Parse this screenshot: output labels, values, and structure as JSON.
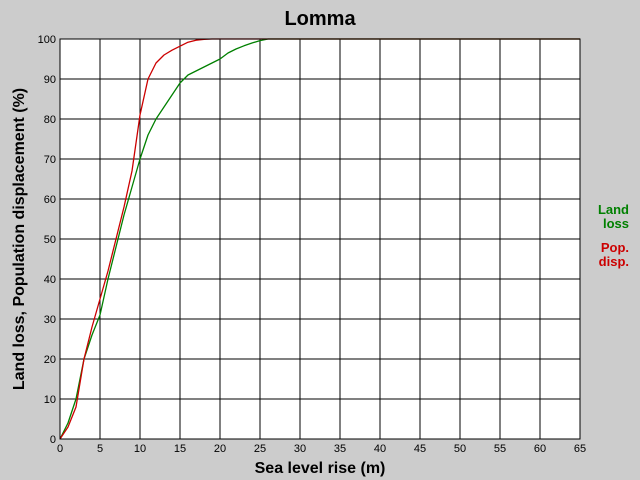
{
  "chart_data": {
    "type": "line",
    "title": "Lomma",
    "xlabel": "Sea level rise (m)",
    "ylabel": "Land loss, Population displacement (%)",
    "xlim": [
      0,
      65
    ],
    "ylim": [
      0,
      100
    ],
    "xticks": [
      0,
      5,
      10,
      15,
      20,
      25,
      30,
      35,
      40,
      45,
      50,
      55,
      60,
      65
    ],
    "yticks": [
      0,
      10,
      20,
      30,
      40,
      50,
      60,
      70,
      80,
      90,
      100
    ],
    "grid": true,
    "legend_position": "right",
    "series": [
      {
        "name": "Land loss",
        "legend_lines": [
          "Land",
          "loss"
        ],
        "color": "#008000",
        "points": [
          [
            0,
            0
          ],
          [
            1,
            4
          ],
          [
            2,
            10
          ],
          [
            3,
            20
          ],
          [
            4,
            26
          ],
          [
            5,
            31
          ],
          [
            6,
            40
          ],
          [
            7,
            48
          ],
          [
            8,
            56
          ],
          [
            9,
            63
          ],
          [
            10,
            70
          ],
          [
            11,
            76
          ],
          [
            12,
            80
          ],
          [
            13,
            83
          ],
          [
            14,
            86
          ],
          [
            15,
            89
          ],
          [
            16,
            91
          ],
          [
            17,
            92
          ],
          [
            18,
            93
          ],
          [
            19,
            94
          ],
          [
            20,
            95
          ],
          [
            21,
            96.5
          ],
          [
            22,
            97.5
          ],
          [
            23,
            98.3
          ],
          [
            24,
            99
          ],
          [
            25,
            99.6
          ],
          [
            26,
            100
          ],
          [
            65,
            100
          ]
        ]
      },
      {
        "name": "Pop. disp.",
        "legend_lines": [
          "Pop.",
          "disp."
        ],
        "color": "#cc0000",
        "points": [
          [
            0,
            0
          ],
          [
            1,
            3
          ],
          [
            2,
            8
          ],
          [
            3,
            20
          ],
          [
            4,
            28
          ],
          [
            5,
            35
          ],
          [
            6,
            42
          ],
          [
            7,
            50
          ],
          [
            8,
            58
          ],
          [
            9,
            67
          ],
          [
            10,
            81
          ],
          [
            11,
            90
          ],
          [
            12,
            94
          ],
          [
            13,
            96
          ],
          [
            14,
            97.2
          ],
          [
            15,
            98.2
          ],
          [
            16,
            99.2
          ],
          [
            17,
            99.7
          ],
          [
            18,
            99.9
          ],
          [
            19,
            100
          ],
          [
            65,
            100
          ]
        ]
      }
    ]
  }
}
